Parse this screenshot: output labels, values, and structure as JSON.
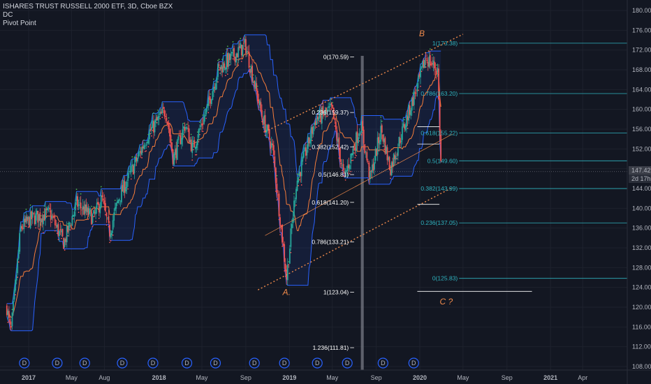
{
  "legend": {
    "title": "ISHARES TRUST RUSSELL 2000 ETF, 3D, Cboe BZX",
    "indicator1": "DC",
    "indicator2": "Pivot Point"
  },
  "price_badge": {
    "price": "147.42",
    "countdown": "2d 17h"
  },
  "colors": {
    "background": "#131722",
    "grid": "#1e222d",
    "up": "#26a69a",
    "down": "#ef5350",
    "donchian_band": "#2962ff",
    "donchian_mid": "#f57c3a",
    "channel": "#f08a4b",
    "fib_left": "#ffffff",
    "fib_right": "#2fb4c0",
    "highlight": "#787b86",
    "dividend": "#2962ff"
  },
  "chart_data": {
    "type": "candlestick",
    "title": "ISHARES TRUST RUSSELL 2000 ETF, 3D, Cboe BZX",
    "y_axis": {
      "min": 108,
      "max": 180,
      "ticks": [
        "180.00",
        "176.00",
        "172.00",
        "168.00",
        "164.00",
        "160.00",
        "156.00",
        "152.00",
        "148.00",
        "144.00",
        "140.00",
        "136.00",
        "132.00",
        "128.00",
        "124.00",
        "120.00",
        "116.00",
        "112.00",
        "108.00"
      ]
    },
    "x_axis": {
      "ticks": [
        {
          "label": "2017",
          "date": "2017-01-01"
        },
        {
          "label": "May",
          "date": "2017-05-01"
        },
        {
          "label": "Aug",
          "date": "2017-08-01"
        },
        {
          "label": "2018",
          "date": "2018-01-01"
        },
        {
          "label": "May",
          "date": "2018-05-01"
        },
        {
          "label": "Sep",
          "date": "2018-09-01"
        },
        {
          "label": "2019",
          "date": "2019-01-01"
        },
        {
          "label": "May",
          "date": "2019-05-01"
        },
        {
          "label": "Sep",
          "date": "2019-09-01"
        },
        {
          "label": "2020",
          "date": "2020-01-01"
        },
        {
          "label": "May",
          "date": "2020-05-01"
        },
        {
          "label": "Sep",
          "date": "2020-09-01"
        },
        {
          "label": "2021",
          "date": "2021-01-01"
        },
        {
          "label": "Apr",
          "date": "2021-04-01"
        }
      ]
    },
    "price_path": [
      [
        "2016-11-01",
        120
      ],
      [
        "2016-11-12",
        114.5
      ],
      [
        "2016-12-10",
        136
      ],
      [
        "2017-01-10",
        138
      ],
      [
        "2017-03-01",
        139
      ],
      [
        "2017-04-10",
        133
      ],
      [
        "2017-05-15",
        141
      ],
      [
        "2017-07-01",
        138
      ],
      [
        "2017-07-25",
        142
      ],
      [
        "2017-08-15",
        135
      ],
      [
        "2017-09-10",
        142
      ],
      [
        "2017-11-01",
        150
      ],
      [
        "2017-12-01",
        155
      ],
      [
        "2018-01-20",
        160
      ],
      [
        "2018-02-10",
        150
      ],
      [
        "2018-03-15",
        157
      ],
      [
        "2018-04-05",
        152
      ],
      [
        "2018-05-15",
        160
      ],
      [
        "2018-06-15",
        168
      ],
      [
        "2018-08-31",
        173
      ],
      [
        "2018-10-15",
        159
      ],
      [
        "2018-11-15",
        152
      ],
      [
        "2018-12-24",
        126
      ],
      [
        "2019-01-20",
        145
      ],
      [
        "2019-03-15",
        158
      ],
      [
        "2019-04-30",
        160
      ],
      [
        "2019-06-03",
        146
      ],
      [
        "2019-07-20",
        157
      ],
      [
        "2019-08-15",
        146
      ],
      [
        "2019-09-15",
        156
      ],
      [
        "2019-10-10",
        148
      ],
      [
        "2019-12-31",
        166
      ],
      [
        "2020-01-17",
        170.5
      ],
      [
        "2020-02-20",
        168
      ],
      [
        "2020-03-01",
        147
      ]
    ],
    "last_price": 147.42,
    "fib_retracement_left": [
      {
        "level": "0",
        "price": 170.59,
        "label": "0(170.59)"
      },
      {
        "level": "0.236",
        "price": 159.37,
        "label": "0.236(159.37)"
      },
      {
        "level": "0.382",
        "price": 152.42,
        "label": "0.382(152.42)"
      },
      {
        "level": "0.5",
        "price": 146.81,
        "label": "0.5(146.81)"
      },
      {
        "level": "0.618",
        "price": 141.2,
        "label": "0.618(141.20)"
      },
      {
        "level": "0.786",
        "price": 133.21,
        "label": "0.786(133.21)"
      },
      {
        "level": "1",
        "price": 123.04,
        "label": "1(123.04)"
      },
      {
        "level": "1.236",
        "price": 111.81,
        "label": "1.236(111.81)"
      }
    ],
    "fib_retracement_right": [
      {
        "level": "1",
        "price": 173.38,
        "label": "1(173.38)"
      },
      {
        "level": "0.786",
        "price": 163.2,
        "label": "0.786(163.20)"
      },
      {
        "level": "0.618",
        "price": 155.22,
        "label": "0.618(155.22)"
      },
      {
        "level": "0.5",
        "price": 149.6,
        "label": "0.5(149.60)"
      },
      {
        "level": "0.382",
        "price": 143.99,
        "label": "0.382(143.99)"
      },
      {
        "level": "0.236",
        "price": 137.05,
        "label": "0.236(137.05)"
      },
      {
        "level": "0",
        "price": 125.83,
        "label": "0(125.83)"
      }
    ],
    "pivot_segments": [
      {
        "start": "2019-12-25",
        "end": "2020-02-25",
        "price": 156.5
      },
      {
        "start": "2019-12-25",
        "end": "2020-02-25",
        "price": 153
      },
      {
        "start": "2019-12-25",
        "end": "2020-02-25",
        "price": 140.8
      },
      {
        "start": "2019-12-25",
        "end": "2020-11-10",
        "price": 123.2
      }
    ],
    "channel": {
      "upper": [
        [
          "2018-10-25",
          155.5
        ],
        [
          "2020-05-01",
          175.2
        ]
      ],
      "lower": [
        [
          "2018-10-05",
          123.5
        ],
        [
          "2020-04-01",
          144.2
        ]
      ],
      "mid": [
        [
          "2018-10-25",
          134.5
        ],
        [
          "2020-04-01",
          155
        ]
      ]
    },
    "wave_labels": [
      {
        "text": "A.",
        "date": "2018-12-24",
        "price": 122.5
      },
      {
        "text": "B",
        "date": "2020-01-07",
        "price": 174.8
      },
      {
        "text": "C ?",
        "date": "2020-03-15",
        "price": 120.6
      }
    ],
    "highlight_band": {
      "start": "2019-07-20",
      "end": "2019-07-28"
    },
    "dividend_markers": [
      "2016-12-20",
      "2017-03-22",
      "2017-06-07",
      "2017-09-20",
      "2017-12-15",
      "2018-03-20",
      "2018-06-08",
      "2018-09-25",
      "2018-12-18",
      "2019-03-20",
      "2019-06-12",
      "2019-09-20",
      "2019-12-15"
    ],
    "dividend_label": "D"
  }
}
